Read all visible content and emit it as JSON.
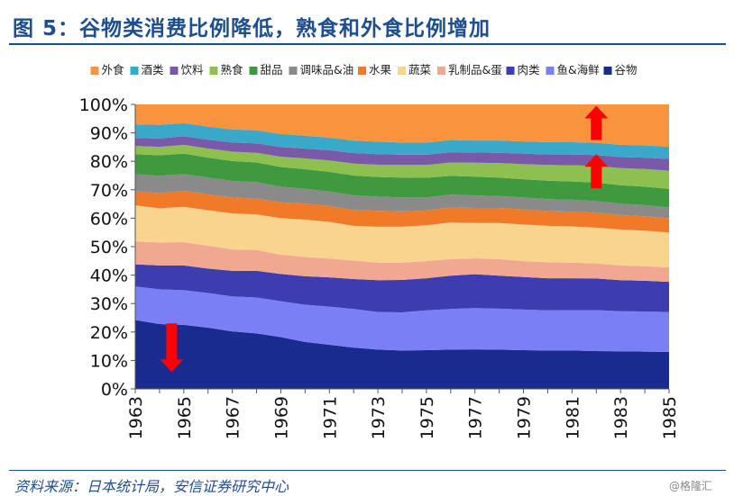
{
  "title": "图 5：谷物类消费比例降低，熟食和外食比例增加",
  "source": "资料来源：日本统计局，安信证券研究中心",
  "watermark": "@格隆汇",
  "chart_data": {
    "type": "area",
    "stacked": true,
    "x": [
      1963,
      1964,
      1965,
      1966,
      1967,
      1968,
      1969,
      1970,
      1971,
      1972,
      1973,
      1974,
      1975,
      1976,
      1977,
      1978,
      1979,
      1980,
      1981,
      1982,
      1983,
      1984,
      1985
    ],
    "x_tick_labels": [
      "1963",
      "1965",
      "1967",
      "1969",
      "1971",
      "1973",
      "1975",
      "1977",
      "1979",
      "1981",
      "1983",
      "1985"
    ],
    "ylim": [
      0,
      100
    ],
    "y_tick_labels": [
      "0%",
      "10%",
      "20%",
      "30%",
      "40%",
      "50%",
      "60%",
      "70%",
      "80%",
      "90%",
      "100%"
    ],
    "legend_position": "top",
    "series": [
      {
        "name": "谷物",
        "color": "#1a2b8f",
        "values": [
          24.2,
          22.8,
          22.5,
          21.5,
          20.2,
          19.5,
          18.2,
          16.5,
          15.5,
          14.5,
          13.8,
          13.5,
          13.6,
          13.8,
          13.9,
          13.8,
          13.6,
          13.5,
          13.5,
          13.3,
          13.2,
          13.1,
          13.0
        ]
      },
      {
        "name": "鱼&海鲜",
        "color": "#7a7ff5",
        "values": [
          11.8,
          12.2,
          12.2,
          12.2,
          12.3,
          12.6,
          12.6,
          13.1,
          13.4,
          13.6,
          13.2,
          13.4,
          14.0,
          14.3,
          14.5,
          14.4,
          14.3,
          14.1,
          14.2,
          14.4,
          14.1,
          14.1,
          14.0
        ]
      },
      {
        "name": "肉类",
        "color": "#3d3db0",
        "values": [
          7.8,
          8.4,
          8.7,
          8.6,
          9.0,
          9.4,
          9.6,
          10.0,
          10.3,
          10.5,
          11.2,
          11.4,
          11.3,
          11.7,
          11.9,
          11.6,
          11.4,
          11.3,
          11.2,
          11.1,
          10.9,
          10.8,
          10.6
        ]
      },
      {
        "name": "乳制品&蛋",
        "color": "#f0a890",
        "values": [
          8.0,
          8.1,
          8.2,
          8.0,
          7.5,
          7.3,
          6.8,
          6.8,
          6.6,
          6.5,
          6.2,
          6.1,
          6.0,
          5.8,
          5.6,
          5.8,
          5.6,
          5.6,
          5.5,
          5.3,
          5.2,
          5.1,
          5.1
        ]
      },
      {
        "name": "蔬菜",
        "color": "#f8d48e",
        "values": [
          12.7,
          12.0,
          12.4,
          12.5,
          12.7,
          12.5,
          12.8,
          13.1,
          12.9,
          12.2,
          12.6,
          12.6,
          12.6,
          12.9,
          12.4,
          12.7,
          12.9,
          12.8,
          12.7,
          12.6,
          12.6,
          12.5,
          12.3
        ]
      },
      {
        "name": "水果",
        "color": "#f07a28",
        "values": [
          5.0,
          5.3,
          5.6,
          5.6,
          5.6,
          5.6,
          5.6,
          5.6,
          5.6,
          5.6,
          5.6,
          5.4,
          5.2,
          5.3,
          5.3,
          5.3,
          5.3,
          5.2,
          5.2,
          5.2,
          5.1,
          5.1,
          5.0
        ]
      },
      {
        "name": "调味品&油",
        "color": "#8a8a8a",
        "values": [
          6.0,
          6.1,
          5.9,
          5.9,
          5.8,
          5.8,
          5.5,
          5.2,
          5.1,
          5.1,
          5.0,
          4.9,
          4.6,
          4.5,
          4.4,
          4.2,
          4.2,
          4.2,
          4.2,
          4.1,
          4.0,
          3.9,
          3.8
        ]
      },
      {
        "name": "甜品",
        "color": "#3f9a3f",
        "values": [
          7.0,
          7.2,
          7.2,
          7.0,
          7.0,
          6.9,
          6.9,
          6.9,
          6.9,
          7.0,
          6.9,
          7.0,
          6.9,
          6.6,
          6.6,
          6.5,
          6.4,
          6.5,
          6.4,
          6.5,
          6.5,
          6.5,
          6.5
        ]
      },
      {
        "name": "熟食",
        "color": "#8ec050",
        "values": [
          2.9,
          3.0,
          3.1,
          3.2,
          3.3,
          3.4,
          3.6,
          3.8,
          4.0,
          4.2,
          4.3,
          4.4,
          4.5,
          4.7,
          4.9,
          5.1,
          5.3,
          5.5,
          5.7,
          5.9,
          6.0,
          6.2,
          6.4
        ]
      },
      {
        "name": "饮料",
        "color": "#7a5aa8",
        "values": [
          2.8,
          2.9,
          3.0,
          3.1,
          3.2,
          3.3,
          3.4,
          3.5,
          3.6,
          3.7,
          3.7,
          3.6,
          3.6,
          3.6,
          3.6,
          3.6,
          3.7,
          3.7,
          3.8,
          3.8,
          3.9,
          4.0,
          4.1
        ]
      },
      {
        "name": "酒类",
        "color": "#3aa8c8",
        "values": [
          4.8,
          4.8,
          4.6,
          4.6,
          4.6,
          4.6,
          4.6,
          4.5,
          4.4,
          4.4,
          4.4,
          4.3,
          4.3,
          4.3,
          4.2,
          4.3,
          4.3,
          4.3,
          4.3,
          4.3,
          4.3,
          4.3,
          4.3
        ]
      },
      {
        "name": "外食",
        "color": "#f7943d",
        "values": [
          7.0,
          7.2,
          6.6,
          7.8,
          8.8,
          9.1,
          10.4,
          11.0,
          11.7,
          12.7,
          13.1,
          13.4,
          13.4,
          12.5,
          12.7,
          12.7,
          13.0,
          13.3,
          13.3,
          13.5,
          14.2,
          14.4,
          14.9
        ]
      }
    ],
    "legend_order": [
      "外食",
      "酒类",
      "饮料",
      "熟食",
      "甜品",
      "调味品&油",
      "水果",
      "蔬菜",
      "乳制品&蛋",
      "肉类",
      "鱼&海鲜",
      "谷物"
    ],
    "annotations": [
      {
        "type": "arrow",
        "direction": "up",
        "x": 1982,
        "y": 93.5,
        "color": "#ff0000"
      },
      {
        "type": "arrow",
        "direction": "up",
        "x": 1982,
        "y": 76.5,
        "color": "#ff0000"
      },
      {
        "type": "arrow",
        "direction": "down",
        "x": 1964.5,
        "y": 14.5,
        "color": "#ff0000"
      }
    ]
  }
}
